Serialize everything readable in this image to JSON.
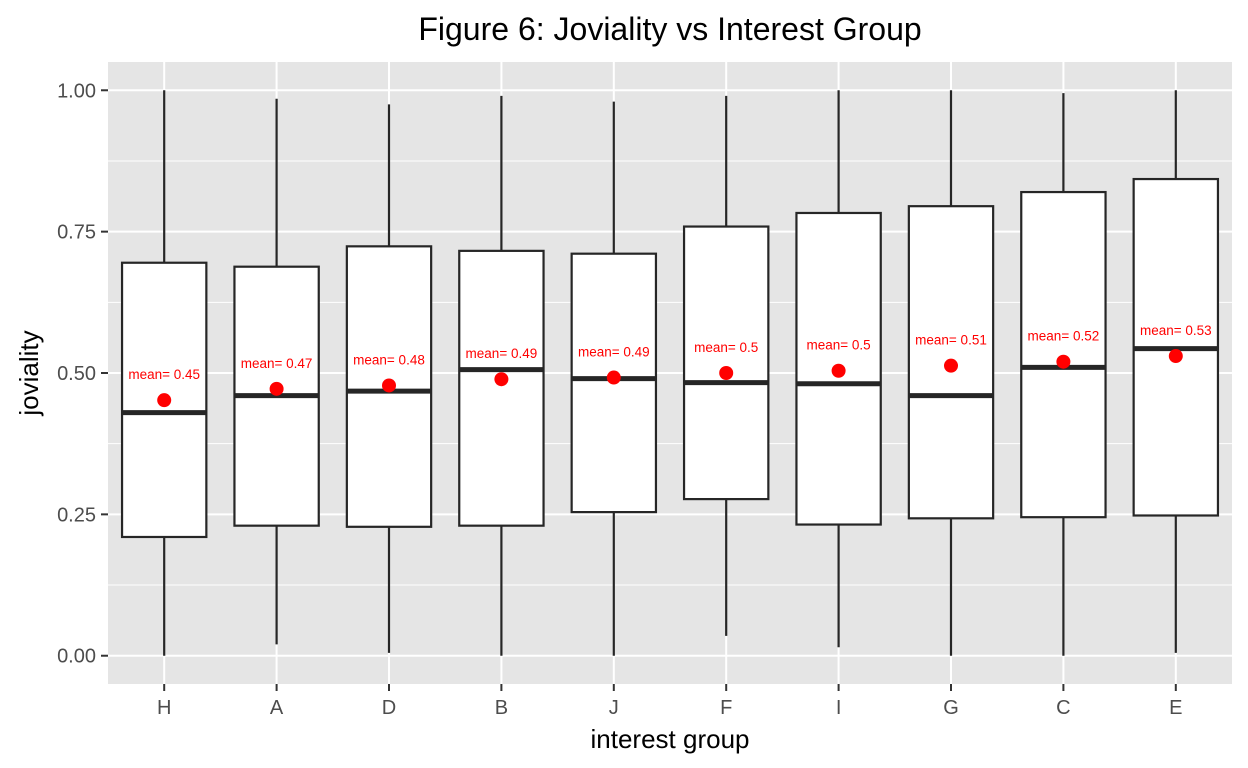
{
  "chart_data": {
    "type": "box",
    "title": "Figure 6: Joviality vs Interest Group",
    "xlabel": "interest group",
    "ylabel": "joviality",
    "ylim": [
      -0.05,
      1.05
    ],
    "y_ticks": [
      "0.00",
      "0.25",
      "0.50",
      "0.75",
      "1.00"
    ],
    "y_tick_values": [
      0,
      0.25,
      0.5,
      0.75,
      1.0
    ],
    "grid": true,
    "categories": [
      "H",
      "A",
      "D",
      "B",
      "J",
      "F",
      "I",
      "G",
      "C",
      "E"
    ],
    "boxes": [
      {
        "group": "H",
        "min": 0.0,
        "q1": 0.21,
        "median": 0.43,
        "q3": 0.695,
        "max": 1.0,
        "mean": 0.452,
        "mean_label": "mean= 0.45"
      },
      {
        "group": "A",
        "min": 0.02,
        "q1": 0.23,
        "median": 0.46,
        "q3": 0.688,
        "max": 0.985,
        "mean": 0.472,
        "mean_label": "mean= 0.47"
      },
      {
        "group": "D",
        "min": 0.005,
        "q1": 0.228,
        "median": 0.468,
        "q3": 0.724,
        "max": 0.975,
        "mean": 0.478,
        "mean_label": "mean= 0.48"
      },
      {
        "group": "B",
        "min": 0.0,
        "q1": 0.23,
        "median": 0.506,
        "q3": 0.716,
        "max": 0.99,
        "mean": 0.489,
        "mean_label": "mean= 0.49"
      },
      {
        "group": "J",
        "min": 0.0,
        "q1": 0.254,
        "median": 0.49,
        "q3": 0.711,
        "max": 0.98,
        "mean": 0.492,
        "mean_label": "mean= 0.49"
      },
      {
        "group": "F",
        "min": 0.035,
        "q1": 0.277,
        "median": 0.483,
        "q3": 0.759,
        "max": 0.99,
        "mean": 0.5,
        "mean_label": "mean= 0.5"
      },
      {
        "group": "I",
        "min": 0.015,
        "q1": 0.232,
        "median": 0.481,
        "q3": 0.783,
        "max": 1.0,
        "mean": 0.504,
        "mean_label": "mean= 0.5"
      },
      {
        "group": "G",
        "min": 0.0,
        "q1": 0.243,
        "median": 0.46,
        "q3": 0.795,
        "max": 1.0,
        "mean": 0.513,
        "mean_label": "mean= 0.51"
      },
      {
        "group": "C",
        "min": 0.0,
        "q1": 0.245,
        "median": 0.51,
        "q3": 0.82,
        "max": 0.995,
        "mean": 0.52,
        "mean_label": "mean= 0.52"
      },
      {
        "group": "E",
        "min": 0.005,
        "q1": 0.248,
        "median": 0.543,
        "q3": 0.843,
        "max": 1.0,
        "mean": 0.53,
        "mean_label": "mean= 0.53"
      }
    ],
    "colors": {
      "panel_background": "#e5e5e5",
      "grid_line": "#ffffff",
      "box_fill": "#ffffff",
      "box_stroke": "#262626",
      "mean_point": "#ff0000",
      "mean_label": "#ff0000",
      "tick_label": "#4d4d4d",
      "tick_mark": "#333333"
    }
  }
}
